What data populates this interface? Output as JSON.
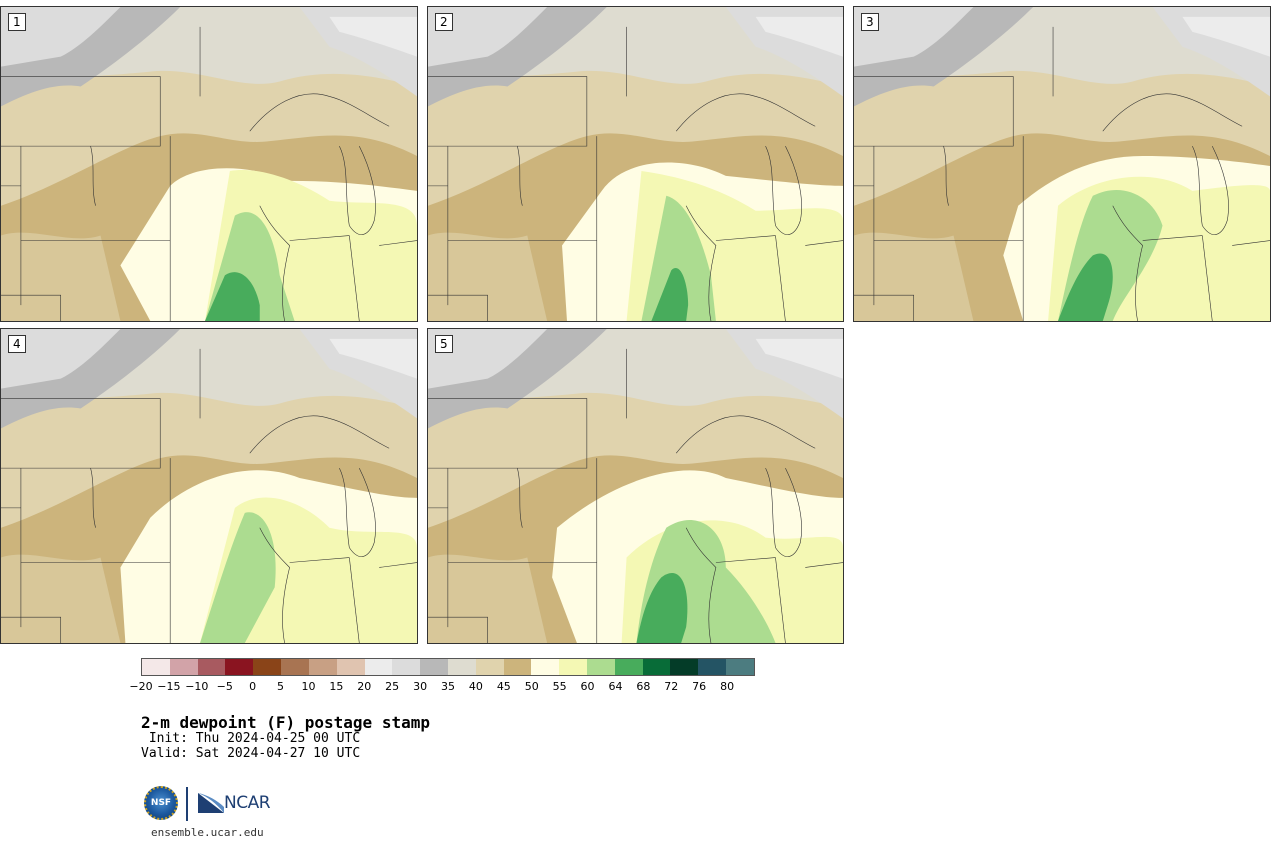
{
  "panels": [
    {
      "label": "1"
    },
    {
      "label": "2"
    },
    {
      "label": "3"
    },
    {
      "label": "4"
    },
    {
      "label": "5"
    }
  ],
  "colorbar": {
    "colors": [
      "#f4e8e8",
      "#d2a3a8",
      "#a85a60",
      "#8a1420",
      "#8a4418",
      "#a87452",
      "#c8a084",
      "#e0c4b0",
      "#ececec",
      "#dcdcdc",
      "#b8b8b8",
      "#dedcd0",
      "#e0d3ad",
      "#ccb47c",
      "#fffde4",
      "#f4f8b4",
      "#acdc90",
      "#48ac5c",
      "#086c38",
      "#043c28",
      "#245464",
      "#4c7c80"
    ],
    "ticks": [
      "−20",
      "−15",
      "−10",
      "−5",
      "0",
      "5",
      "10",
      "15",
      "20",
      "25",
      "30",
      "35",
      "40",
      "45",
      "50",
      "55",
      "60",
      "64",
      "68",
      "72",
      "76",
      "80"
    ]
  },
  "title": "2-m dewpoint (F) postage stamp",
  "init_line": " Init: Thu 2024-04-25 00 UTC",
  "valid_line": "Valid: Sat 2024-04-27 10 UTC",
  "logos": {
    "nsf": "NSF",
    "ncar": "NCAR"
  },
  "url": "ensemble.ucar.edu"
}
